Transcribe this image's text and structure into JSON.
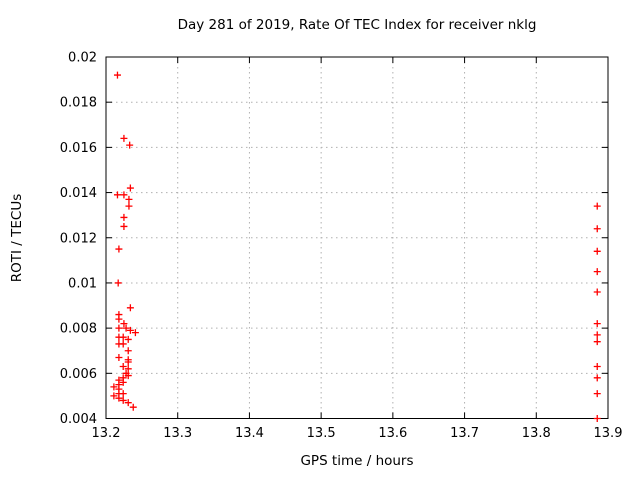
{
  "chart_data": {
    "type": "scatter",
    "title": "Day 281 of 2019, Rate Of TEC Index for receiver nklg",
    "xlabel": "GPS time / hours",
    "ylabel": "ROTI / TECUs",
    "xlim": [
      13.2,
      13.9
    ],
    "ylim": [
      0.004,
      0.02
    ],
    "xticks": [
      13.2,
      13.3,
      13.4,
      13.5,
      13.6,
      13.7,
      13.8,
      13.9
    ],
    "xtick_labels": [
      "13.2",
      "13.3",
      "13.4",
      "13.5",
      "13.6",
      "13.7",
      "13.8",
      "13.9"
    ],
    "yticks": [
      0.004,
      0.006,
      0.008,
      0.01,
      0.012,
      0.014,
      0.016,
      0.018,
      0.02
    ],
    "ytick_labels": [
      "0.004",
      "0.006",
      "0.008",
      "0.01",
      "0.012",
      "0.014",
      "0.016",
      "0.018",
      "0.02"
    ],
    "grid": true,
    "legend": "none",
    "style": {
      "marker_shape": "plus",
      "marker_color": "#ff0000",
      "axis_color": "#000000",
      "grid_color": "#b0b0b0",
      "background": "#ffffff"
    },
    "series": [
      {
        "name": "ROTI",
        "points": [
          [
            13.216,
            0.0192
          ],
          [
            13.225,
            0.0164
          ],
          [
            13.233,
            0.0161
          ],
          [
            13.234,
            0.0142
          ],
          [
            13.216,
            0.0139
          ],
          [
            13.225,
            0.0139
          ],
          [
            13.232,
            0.0137
          ],
          [
            13.232,
            0.0134
          ],
          [
            13.225,
            0.0129
          ],
          [
            13.225,
            0.0125
          ],
          [
            13.218,
            0.0115
          ],
          [
            13.217,
            0.01
          ],
          [
            13.234,
            0.0089
          ],
          [
            13.218,
            0.0086
          ],
          [
            13.218,
            0.0084
          ],
          [
            13.225,
            0.0082
          ],
          [
            13.218,
            0.008
          ],
          [
            13.228,
            0.008
          ],
          [
            13.234,
            0.0079
          ],
          [
            13.241,
            0.0078
          ],
          [
            13.218,
            0.0076
          ],
          [
            13.224,
            0.0076
          ],
          [
            13.231,
            0.0075
          ],
          [
            13.218,
            0.0073
          ],
          [
            13.224,
            0.0073
          ],
          [
            13.231,
            0.007
          ],
          [
            13.218,
            0.0067
          ],
          [
            13.231,
            0.0066
          ],
          [
            13.231,
            0.0065
          ],
          [
            13.224,
            0.0063
          ],
          [
            13.231,
            0.0062
          ],
          [
            13.228,
            0.006
          ],
          [
            13.231,
            0.0059
          ],
          [
            13.224,
            0.0058
          ],
          [
            13.218,
            0.0057
          ],
          [
            13.224,
            0.0056
          ],
          [
            13.218,
            0.0055
          ],
          [
            13.211,
            0.0054
          ],
          [
            13.218,
            0.0053
          ],
          [
            13.224,
            0.0051
          ],
          [
            13.218,
            0.0051
          ],
          [
            13.211,
            0.005
          ],
          [
            13.218,
            0.0049
          ],
          [
            13.224,
            0.0048
          ],
          [
            13.231,
            0.0047
          ],
          [
            13.238,
            0.0045
          ],
          [
            13.885,
            0.0134
          ],
          [
            13.885,
            0.0124
          ],
          [
            13.885,
            0.0114
          ],
          [
            13.885,
            0.0105
          ],
          [
            13.885,
            0.0096
          ],
          [
            13.885,
            0.0082
          ],
          [
            13.885,
            0.0077
          ],
          [
            13.885,
            0.0074
          ],
          [
            13.885,
            0.0063
          ],
          [
            13.885,
            0.0058
          ],
          [
            13.885,
            0.0051
          ],
          [
            13.885,
            0.004
          ]
        ]
      }
    ]
  }
}
